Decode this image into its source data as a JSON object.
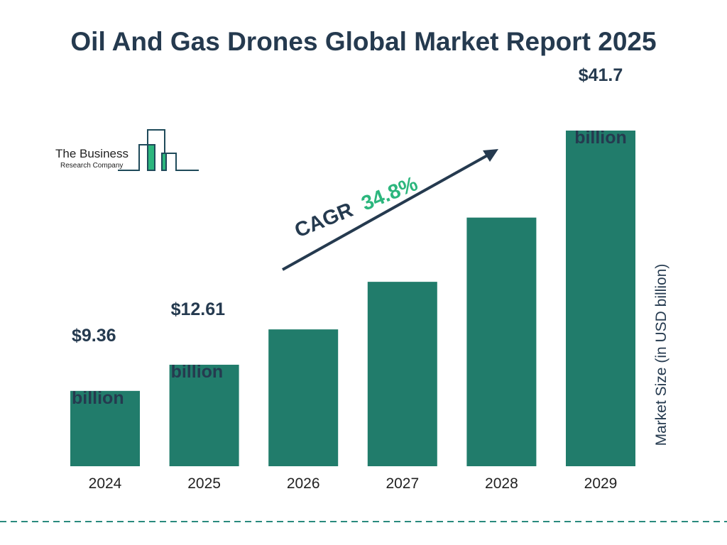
{
  "chart_data": {
    "type": "bar",
    "title": "Oil And Gas Drones Global Market Report 2025",
    "ylabel": "Market Size (in USD billion)",
    "xlabel": "",
    "categories": [
      "2024",
      "2025",
      "2026",
      "2027",
      "2028",
      "2029"
    ],
    "values": [
      9.36,
      12.61,
      17.0,
      22.91,
      30.89,
      41.7
    ],
    "data_labels": [
      "$9.36|billion",
      "$12.61|billion",
      "",
      "",
      "",
      "$41.7|billion"
    ],
    "annotation": {
      "label": "CAGR",
      "value": "34.8%"
    },
    "grid": false,
    "legend": "none"
  },
  "logo": {
    "line1": "The Business",
    "line2": "Research Company"
  },
  "colors": {
    "bar": "#217c6b",
    "text": "#253a4f",
    "accent": "#2cb67d",
    "dash": "#2a8a7e"
  }
}
